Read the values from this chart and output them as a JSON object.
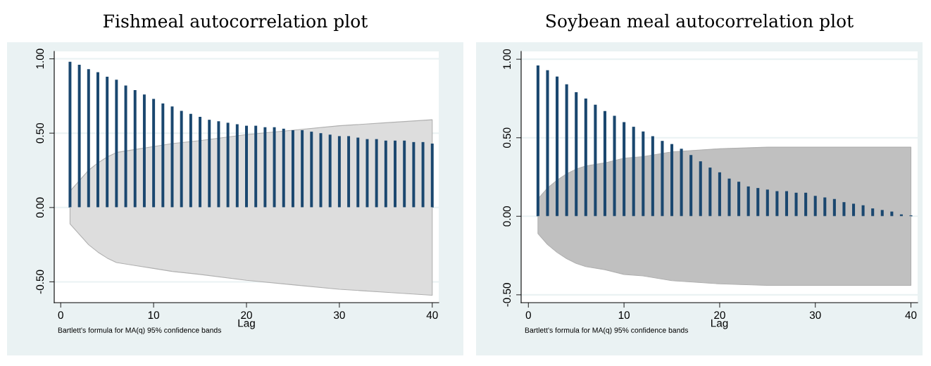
{
  "chart_data": [
    {
      "type": "bar",
      "title": "Fishmeal autocorrelation plot",
      "xlabel": "Lag",
      "annotations": [
        "Bartlett's formula for MA(q) 95% confidence bands"
      ],
      "xlim": [
        -0.7,
        40.7
      ],
      "xticks": [
        0,
        10,
        20,
        30,
        40
      ],
      "ylim": [
        -0.64,
        1.05
      ],
      "yticks": [
        {
          "value": -0.5,
          "label": "-0.50"
        },
        {
          "value": 0,
          "label": "0.00"
        },
        {
          "value": 0.5,
          "label": "0.50"
        },
        {
          "value": 1,
          "label": "1.00"
        }
      ],
      "grid": "y",
      "series": [
        {
          "type": "line",
          "color": "#dddddd",
          "x": [
            1,
            2,
            3,
            4,
            5,
            6,
            8,
            10,
            12,
            15,
            20,
            25,
            30,
            35,
            40
          ],
          "values": [
            0,
            0,
            0,
            0,
            0,
            0,
            0,
            0,
            0,
            0,
            0,
            0,
            0,
            0,
            0
          ],
          "lower": [
            -0.11,
            -0.18,
            -0.25,
            -0.3,
            -0.34,
            -0.37,
            -0.39,
            -0.41,
            -0.43,
            -0.45,
            -0.49,
            -0.52,
            -0.55,
            -0.57,
            -0.59
          ],
          "upper": [
            0.11,
            0.18,
            0.25,
            0.3,
            0.34,
            0.37,
            0.39,
            0.41,
            0.43,
            0.45,
            0.49,
            0.52,
            0.55,
            0.57,
            0.59
          ]
        },
        {
          "color": "#1a476f",
          "x": [
            1,
            2,
            3,
            4,
            5,
            6,
            7,
            8,
            9,
            10,
            11,
            12,
            13,
            14,
            15,
            16,
            17,
            18,
            19,
            20,
            21,
            22,
            23,
            24,
            25,
            26,
            27,
            28,
            29,
            30,
            31,
            32,
            33,
            34,
            35,
            36,
            37,
            38,
            39,
            40
          ],
          "values": [
            0.98,
            0.96,
            0.93,
            0.91,
            0.88,
            0.86,
            0.82,
            0.79,
            0.76,
            0.73,
            0.7,
            0.68,
            0.65,
            0.63,
            0.61,
            0.59,
            0.58,
            0.57,
            0.56,
            0.55,
            0.55,
            0.54,
            0.54,
            0.53,
            0.52,
            0.52,
            0.51,
            0.5,
            0.49,
            0.48,
            0.48,
            0.47,
            0.46,
            0.46,
            0.45,
            0.45,
            0.45,
            0.44,
            0.44,
            0.43
          ]
        }
      ]
    },
    {
      "type": "bar",
      "title": "Soybean meal autocorrelation plot",
      "xlabel": "Lag",
      "annotations": [
        "Bartlett's formula for MA(q) 95% confidence bands"
      ],
      "xlim": [
        -0.76,
        40.7
      ],
      "xticks": [
        0,
        10,
        20,
        30,
        40
      ],
      "ylim": [
        -0.55,
        1.05
      ],
      "yticks": [
        {
          "value": -0.5,
          "label": "-0.50"
        },
        {
          "value": 0,
          "label": "0.00"
        },
        {
          "value": 0.5,
          "label": "0.50"
        },
        {
          "value": 1,
          "label": "1.00"
        }
      ],
      "grid": "y",
      "series": [
        {
          "type": "line",
          "color": "#c0c0c0",
          "x": [
            1,
            2,
            3,
            4,
            5,
            6,
            8,
            10,
            12,
            15,
            20,
            25,
            30,
            40
          ],
          "values": [
            0,
            0,
            0,
            0,
            0,
            0,
            0,
            0,
            0,
            0,
            0,
            0,
            0,
            0
          ],
          "lower": [
            -0.11,
            -0.18,
            -0.23,
            -0.27,
            -0.3,
            -0.32,
            -0.34,
            -0.37,
            -0.38,
            -0.41,
            -0.43,
            -0.44,
            -0.44,
            -0.44
          ],
          "upper": [
            0.11,
            0.18,
            0.23,
            0.27,
            0.3,
            0.32,
            0.34,
            0.37,
            0.38,
            0.41,
            0.43,
            0.44,
            0.44,
            0.44
          ]
        },
        {
          "color": "#1a476f",
          "x": [
            1,
            2,
            3,
            4,
            5,
            6,
            7,
            8,
            9,
            10,
            11,
            12,
            13,
            14,
            15,
            16,
            17,
            18,
            19,
            20,
            21,
            22,
            23,
            24,
            25,
            26,
            27,
            28,
            29,
            30,
            31,
            32,
            33,
            34,
            35,
            36,
            37,
            38,
            39,
            40
          ],
          "values": [
            0.96,
            0.93,
            0.89,
            0.84,
            0.79,
            0.75,
            0.71,
            0.67,
            0.64,
            0.6,
            0.57,
            0.54,
            0.51,
            0.48,
            0.46,
            0.43,
            0.39,
            0.35,
            0.31,
            0.28,
            0.24,
            0.22,
            0.19,
            0.18,
            0.17,
            0.16,
            0.16,
            0.15,
            0.15,
            0.13,
            0.12,
            0.11,
            0.09,
            0.08,
            0.07,
            0.05,
            0.04,
            0.03,
            0.012,
            0.006
          ]
        }
      ]
    }
  ]
}
